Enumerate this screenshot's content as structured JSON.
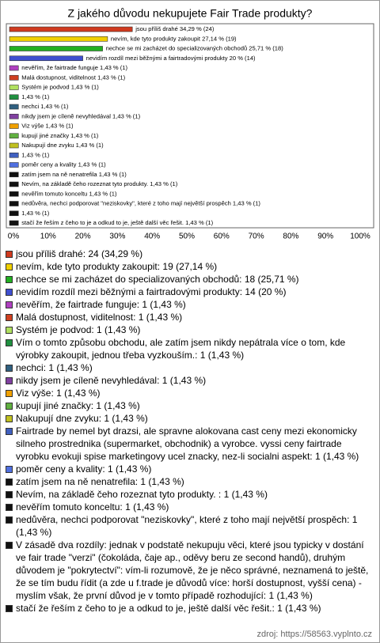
{
  "chart_data": {
    "type": "hbar",
    "title": "Z jakého důvodu nekupujete Fair Trade produkty?",
    "values": [
      34.29,
      27.14,
      25.71,
      20,
      1.43,
      1.43,
      1.43,
      1.43,
      1.43,
      1.43,
      1.43,
      1.43,
      1.43,
      1.43,
      1.43,
      1.43,
      1.43,
      1.43,
      1.43,
      1.43,
      1.43
    ],
    "value_labels": [
      "jsou příliš drahé 34,29 % (24)",
      "nevím, kde tyto produkty zakoupit 27,14 % (19)",
      "nechce se mi zacházet do specializovaných obchodů 25,71 % (18)",
      "nevidím rozdíl mezi běžnými a fairtradovými produkty 20 % (14)",
      "nevěřím, že fairtrade funguje 1,43 % (1)",
      "Malá dostupnost, viditelnost 1,43 % (1)",
      "Systém je podvod 1,43 % (1)",
      "1,43 % (1)",
      "nechci 1,43 % (1)",
      "nikdy jsem je cíleně nevyhledával 1,43 % (1)",
      "Viz výše 1,43 % (1)",
      "kupují jiné značky 1,43 % (1)",
      "Nakupují dne zvyku 1,43 % (1)",
      "1,43 % (1)",
      "poměr ceny a kvality 1,43 % (1)",
      "zatím jsem na ně nenatrefila 1,43 % (1)",
      "Nevím, na základě čeho rozeznat tyto produkty.  1,43 % (1)",
      "nevěřím tomuto konceltu 1,43 % (1)",
      "nedůvěra, nechci podporovat \"neziskovky\", které z toho mají největší prospěch 1,43 % (1)",
      "1,43 % (1)",
      "stačí že řeším z čeho to je a odkud to je, ještě další věc řešit. 1,43 % (1)"
    ],
    "colors": [
      "#d03a1f",
      "#f0d000",
      "#22b022",
      "#3f4fd0",
      "#b040c0",
      "#d04020",
      "#b0e060",
      "#209040",
      "#306080",
      "#8040a0",
      "#f0a000",
      "#60b040",
      "#c0c020",
      "#4060c0",
      "#5070e0",
      "#111111",
      "#111111",
      "#111111",
      "#111111",
      "#111111",
      "#111111"
    ],
    "legend": [
      "jsou příliš drahé: 24 (34,29 %)",
      "nevím, kde tyto produkty zakoupit: 19 (27,14 %)",
      "nechce se mi zacházet do specializovaných obchodů: 18 (25,71 %)",
      "nevidím rozdíl mezi běžnými a fairtradovými produkty: 14 (20 %)",
      "nevěřím, že fairtrade funguje: 1 (1,43 %)",
      "Malá dostupnost, viditelnost: 1 (1,43 %)",
      "Systém je podvod: 1 (1,43 %)",
      "Vím o tomto způsobu obchodu, ale zatím jsem nikdy nepátrala více o tom, kde výrobky zakoupit, jednou třeba vyzkouším.: 1 (1,43 %)",
      "nechci: 1 (1,43 %)",
      "nikdy jsem je cíleně nevyhledával: 1 (1,43 %)",
      "Viz výše: 1 (1,43 %)",
      "kupují jiné značky: 1 (1,43 %)",
      "Nakupují dne zvyku: 1 (1,43 %)",
      "Fairtrade by nemel byt drazsi, ale spravne alokovana cast ceny mezi ekonomicky silneho prostrednika (supermarket, obchodnik) a vyrobce. vyssi ceny fairtrade vyrobku evokuji spise marketingovy ucel znacky, nez-li socialni aspekt: 1 (1,43 %)",
      "poměr ceny a kvality: 1 (1,43 %)",
      "zatím jsem na ně nenatrefila: 1 (1,43 %)",
      "Nevím, na základě čeho rozeznat tyto produkty. : 1 (1,43 %)",
      "nevěřím tomuto konceltu: 1 (1,43 %)",
      "nedůvěra, nechci podporovat \"neziskovky\", které z toho mají největší prospěch: 1 (1,43 %)",
      "V zásadě dva rozdíly: jednak v podstatě nekupuju věci, které jsou typicky v dostání ve fair trade \"verzi\" (čokoláda, čaje ap., oděvy beru ze second handů), druhým důvodem je \"pokrytectví\": vím-li rozumově, že je něco správné, neznamená to ještě, že se tím budu řídit (a zde u f.trade je důvodů více: horší dostupnost, vyšší cena) - myslím však, že první důvod je v tomto případě rozhodující: 1 (1,43 %)",
      "stačí že řeším z čeho to je a odkud to je, ještě další věc řešit.: 1 (1,43 %)"
    ],
    "xlim": [
      0,
      100
    ],
    "xticks": [
      {
        "value": 0,
        "label": "0%"
      },
      {
        "value": 10,
        "label": "10%"
      },
      {
        "value": 20,
        "label": "20%"
      },
      {
        "value": 30,
        "label": "30%"
      },
      {
        "value": 40,
        "label": "40%"
      },
      {
        "value": 50,
        "label": "50%"
      },
      {
        "value": 60,
        "label": "60%"
      },
      {
        "value": 70,
        "label": "70%"
      },
      {
        "value": 80,
        "label": "80%"
      },
      {
        "value": 90,
        "label": "90%"
      },
      {
        "value": 100,
        "label": "100%"
      }
    ]
  },
  "source": "zdroj: https://58563.vyplnto.cz"
}
